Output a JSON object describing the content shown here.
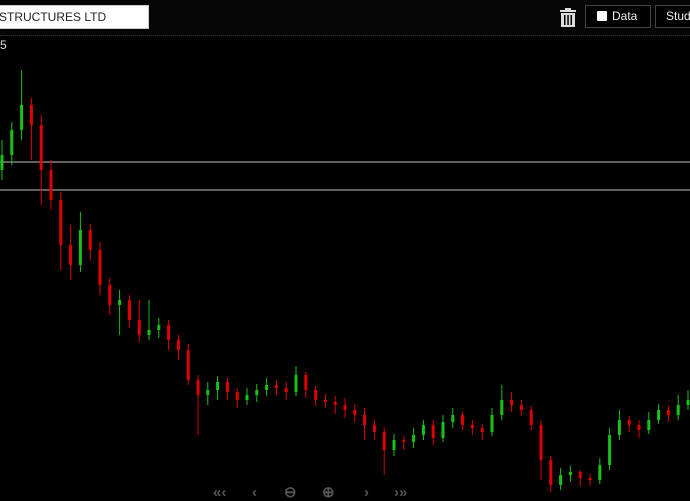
{
  "toolbar": {
    "symbol_value": "STRUCTURES LTD",
    "delete_icon": "trash-icon",
    "data_label": "Data",
    "data_checked": false,
    "studies_label": "Stud"
  },
  "chart": {
    "price_label": "5",
    "colors": {
      "up": "#19c219",
      "down": "#e00000",
      "background": "#000000",
      "line": "#9a9a9a"
    }
  },
  "chart_data": {
    "type": "candlestick",
    "candles_ohlc": [
      [
        330,
        360,
        320,
        345
      ],
      [
        345,
        378,
        335,
        370
      ],
      [
        370,
        430,
        360,
        395
      ],
      [
        395,
        402,
        340,
        375
      ],
      [
        375,
        385,
        295,
        330
      ],
      [
        330,
        340,
        290,
        300
      ],
      [
        300,
        308,
        230,
        255
      ],
      [
        255,
        275,
        220,
        235
      ],
      [
        235,
        288,
        228,
        270
      ],
      [
        270,
        276,
        240,
        250
      ],
      [
        250,
        258,
        205,
        215
      ],
      [
        215,
        222,
        185,
        195
      ],
      [
        195,
        210,
        165,
        200
      ],
      [
        200,
        205,
        172,
        180
      ],
      [
        180,
        200,
        158,
        165
      ],
      [
        165,
        200,
        160,
        170
      ],
      [
        170,
        182,
        162,
        175
      ],
      [
        175,
        180,
        150,
        160
      ],
      [
        160,
        165,
        140,
        150
      ],
      [
        150,
        156,
        115,
        120
      ],
      [
        120,
        125,
        65,
        105
      ],
      [
        105,
        118,
        95,
        110
      ],
      [
        110,
        124,
        100,
        118
      ],
      [
        118,
        122,
        100,
        108
      ],
      [
        108,
        112,
        92,
        100
      ],
      [
        100,
        112,
        95,
        105
      ],
      [
        105,
        116,
        98,
        110
      ],
      [
        110,
        122,
        104,
        115
      ],
      [
        115,
        120,
        105,
        112
      ],
      [
        112,
        118,
        100,
        108
      ],
      [
        108,
        134,
        104,
        125
      ],
      [
        125,
        128,
        102,
        110
      ],
      [
        110,
        114,
        94,
        100
      ],
      [
        100,
        106,
        92,
        98
      ],
      [
        98,
        104,
        86,
        95
      ],
      [
        95,
        102,
        82,
        90
      ],
      [
        90,
        96,
        78,
        85
      ],
      [
        85,
        92,
        60,
        75
      ],
      [
        75,
        80,
        60,
        68
      ],
      [
        68,
        72,
        25,
        50
      ],
      [
        50,
        66,
        44,
        60
      ],
      [
        60,
        64,
        50,
        58
      ],
      [
        58,
        72,
        52,
        65
      ],
      [
        65,
        80,
        60,
        75
      ],
      [
        75,
        80,
        55,
        62
      ],
      [
        62,
        85,
        58,
        78
      ],
      [
        78,
        92,
        72,
        85
      ],
      [
        85,
        88,
        70,
        75
      ],
      [
        75,
        80,
        65,
        72
      ],
      [
        72,
        76,
        60,
        68
      ],
      [
        68,
        92,
        64,
        85
      ],
      [
        85,
        115,
        80,
        100
      ],
      [
        100,
        108,
        88,
        95
      ],
      [
        95,
        100,
        84,
        90
      ],
      [
        90,
        94,
        70,
        75
      ],
      [
        75,
        80,
        20,
        40
      ],
      [
        40,
        44,
        8,
        15
      ],
      [
        15,
        32,
        10,
        25
      ],
      [
        25,
        34,
        18,
        28
      ],
      [
        28,
        30,
        14,
        22
      ],
      [
        22,
        26,
        14,
        20
      ],
      [
        20,
        42,
        16,
        35
      ],
      [
        35,
        72,
        30,
        65
      ],
      [
        65,
        90,
        60,
        80
      ],
      [
        80,
        84,
        68,
        75
      ],
      [
        75,
        80,
        62,
        70
      ],
      [
        70,
        88,
        66,
        80
      ],
      [
        80,
        96,
        76,
        90
      ],
      [
        90,
        94,
        78,
        85
      ],
      [
        85,
        105,
        80,
        95
      ],
      [
        95,
        110,
        90,
        100
      ]
    ],
    "horizontal_lines": [
      338,
      310
    ],
    "ylim": [
      0,
      465
    ],
    "grid": false
  },
  "navigation": {
    "first_icon": "double-chevron-left-icon",
    "prev_icon": "chevron-left-icon",
    "zoom_out_icon": "zoom-out-icon",
    "zoom_in_icon": "zoom-in-icon",
    "next_icon": "chevron-right-icon",
    "last_icon": "double-chevron-right-icon"
  }
}
